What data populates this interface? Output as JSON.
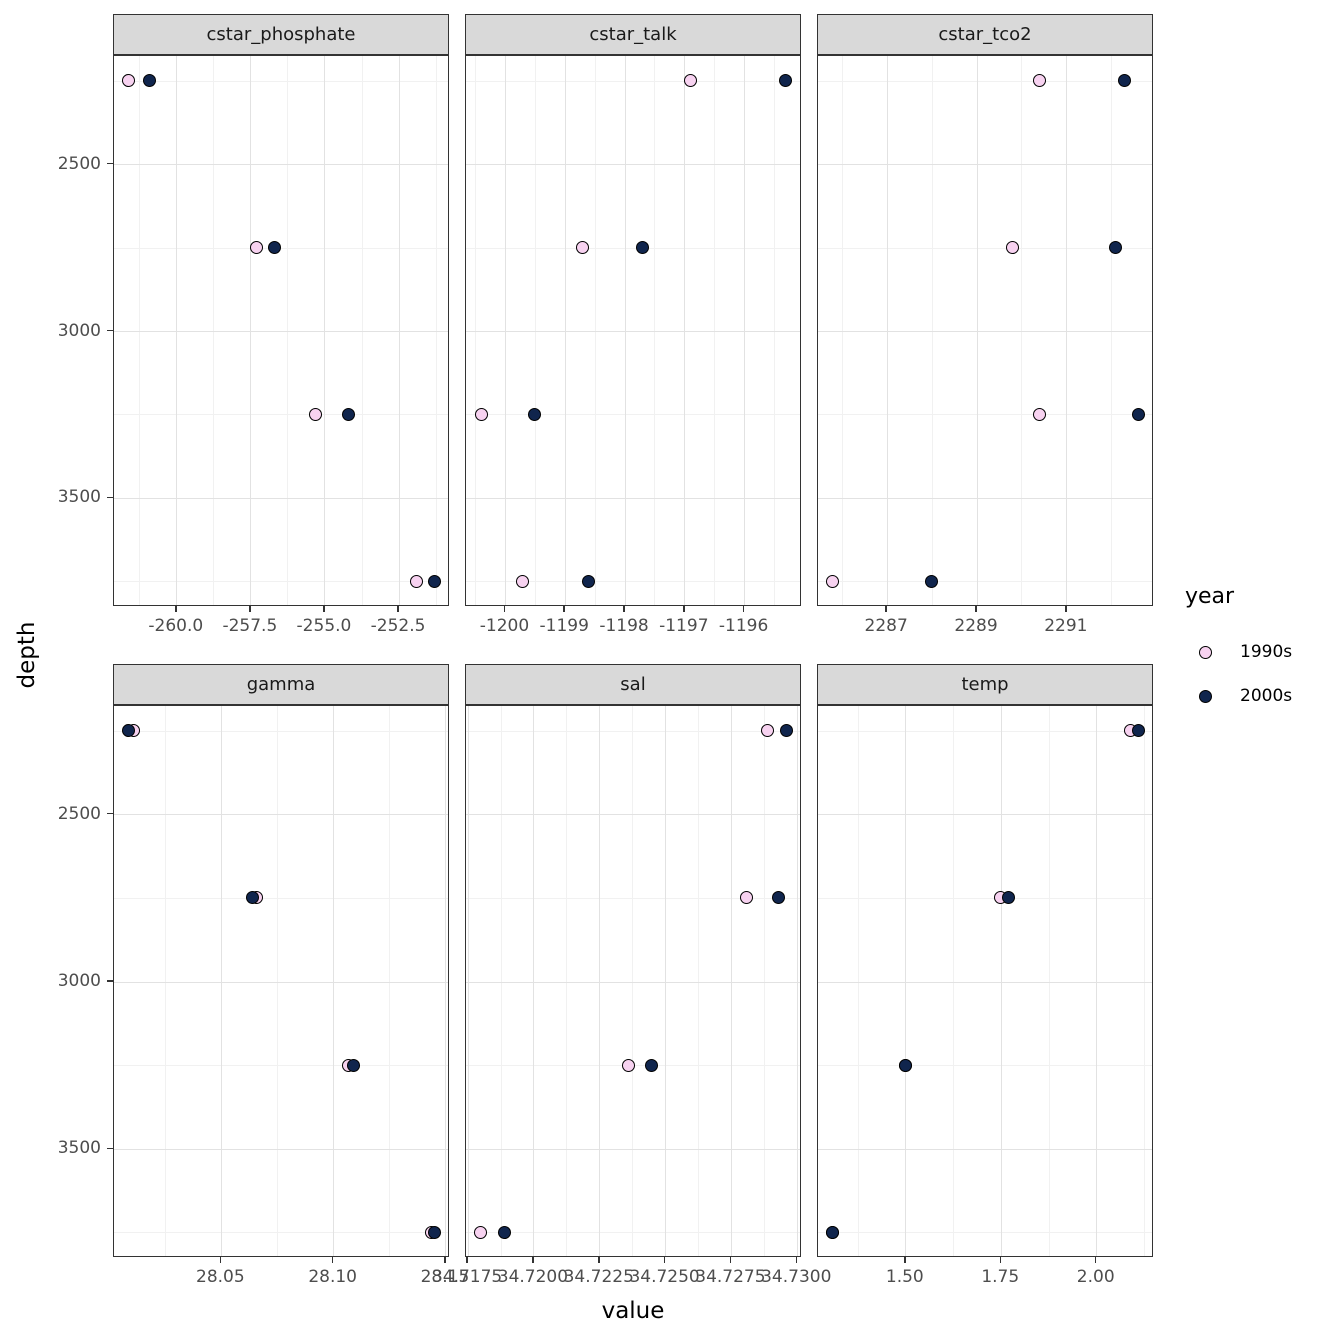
{
  "chart_data": {
    "type": "scatter",
    "title": "",
    "xlabel": "value",
    "ylabel": "depth",
    "legend_title": "year",
    "legend_position": "right",
    "grid": "on",
    "series_styles": [
      {
        "name": "1990s",
        "fill": "#f7d2f0"
      },
      {
        "name": "2000s",
        "fill": "#10254d"
      }
    ],
    "depths": [
      2250,
      2750,
      3250,
      3750
    ],
    "y_axis": {
      "reversed": true,
      "lim": [
        2175,
        3825
      ],
      "ticks": [
        2500,
        3000,
        3500
      ],
      "tick_labels": [
        "2500",
        "3000",
        "3500"
      ],
      "minor_ticks": [
        2250,
        2750,
        3250,
        3750
      ]
    },
    "facets": [
      {
        "name": "cstar_phosphate",
        "xlim": [
          -262.12,
          -250.78
        ],
        "xticks": [
          -260.0,
          -257.5,
          -255.0,
          -252.5
        ],
        "xtick_labels": [
          "-260.0",
          "-257.5",
          "-255.0",
          "-252.5"
        ],
        "xminor": [
          -261.25,
          -258.75,
          -256.25,
          -253.75,
          -251.25
        ],
        "series": [
          {
            "name": "1990s",
            "values": [
              -261.6,
              -257.3,
              -255.3,
              -251.9
            ]
          },
          {
            "name": "2000s",
            "values": [
              -260.9,
              -256.7,
              -254.2,
              -251.3
            ]
          }
        ]
      },
      {
        "name": "cstar_talk",
        "xlim": [
          -1200.66,
          -1195.04
        ],
        "xticks": [
          -1200,
          -1199,
          -1198,
          -1197,
          -1196
        ],
        "xtick_labels": [
          "-1200",
          "-1199",
          "-1198",
          "-1197",
          "-1196"
        ],
        "xminor": [
          -1200.5,
          -1199.5,
          -1198.5,
          -1197.5,
          -1196.5,
          -1195.5
        ],
        "series": [
          {
            "name": "1990s",
            "values": [
              -1196.9,
              -1198.7,
              -1200.4,
              -1199.7
            ]
          },
          {
            "name": "2000s",
            "values": [
              -1195.3,
              -1197.7,
              -1199.5,
              -1198.6
            ]
          }
        ]
      },
      {
        "name": "cstar_tco2",
        "xlim": [
          2285.46,
          2292.94
        ],
        "xticks": [
          2287,
          2289,
          2291
        ],
        "xtick_labels": [
          "2287",
          "2289",
          "2291"
        ],
        "xminor": [
          2286,
          2288,
          2290,
          2292
        ],
        "series": [
          {
            "name": "1990s",
            "values": [
              2290.4,
              2289.8,
              2290.4,
              2285.8
            ]
          },
          {
            "name": "2000s",
            "values": [
              2292.3,
              2292.1,
              2292.6,
              2288.0
            ]
          }
        ]
      },
      {
        "name": "gamma",
        "xlim": [
          28.0022,
          28.1518
        ],
        "xticks": [
          28.05,
          28.1,
          28.15
        ],
        "xtick_labels": [
          "28.05",
          "28.10",
          "28.15"
        ],
        "xminor": [
          28.025,
          28.075,
          28.125
        ],
        "series": [
          {
            "name": "1990s",
            "values": [
              28.011,
              28.066,
              28.107,
              28.144
            ]
          },
          {
            "name": "2000s",
            "values": [
              28.009,
              28.064,
              28.109,
              28.145
            ]
          }
        ]
      },
      {
        "name": "sal",
        "xlim": [
          34.71742,
          34.73018
        ],
        "xticks": [
          34.7175,
          34.72,
          34.7225,
          34.725,
          34.7275,
          34.73
        ],
        "xtick_labels": [
          "34.7175",
          "34.7200",
          "34.7225",
          "34.7250",
          "34.7275",
          "34.7300"
        ],
        "xminor": [
          34.71875,
          34.72125,
          34.72375,
          34.72625,
          34.72875
        ],
        "series": [
          {
            "name": "1990s",
            "values": [
              34.7289,
              34.7281,
              34.7236,
              34.718
            ]
          },
          {
            "name": "2000s",
            "values": [
              34.7296,
              34.7293,
              34.7245,
              34.7189
            ]
          }
        ]
      },
      {
        "name": "temp",
        "xlim": [
          1.27,
          2.15
        ],
        "xticks": [
          1.5,
          1.75,
          2.0
        ],
        "xtick_labels": [
          "1.50",
          "1.75",
          "2.00"
        ],
        "xminor": [
          1.375,
          1.625,
          1.875,
          2.125
        ],
        "series": [
          {
            "name": "1990s",
            "values": [
              2.09,
              1.75,
              1.5,
              1.31
            ]
          },
          {
            "name": "2000s",
            "values": [
              2.11,
              1.77,
              1.5,
              1.31
            ]
          }
        ]
      }
    ]
  },
  "legend": {
    "title": "year",
    "items": [
      {
        "label": "1990s",
        "color": "#f7d2f0"
      },
      {
        "label": "2000s",
        "color": "#10254d"
      }
    ]
  }
}
